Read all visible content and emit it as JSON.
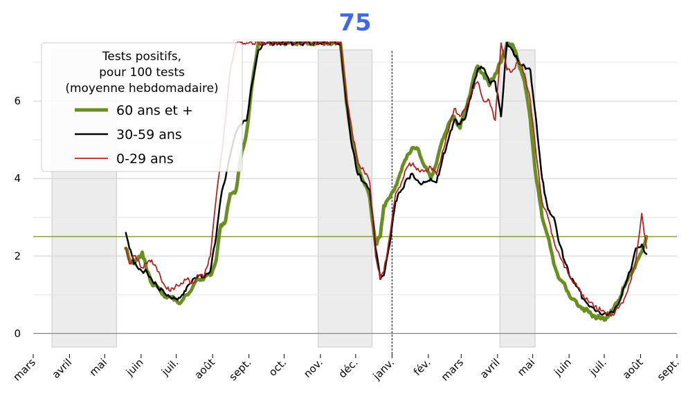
{
  "chart_data": {
    "type": "line",
    "title": "75",
    "xlabel": "",
    "ylabel": "",
    "x_axis_type": "date",
    "xlim": [
      "2020-03-01",
      "2021-09-01"
    ],
    "ylim": [
      -0.35,
      7.5
    ],
    "x_ticks": [
      {
        "date": "2020-03-01",
        "label": "mars"
      },
      {
        "date": "2020-04-01",
        "label": "avril"
      },
      {
        "date": "2020-05-01",
        "label": "mai"
      },
      {
        "date": "2020-06-01",
        "label": "juin"
      },
      {
        "date": "2020-07-01",
        "label": "juil."
      },
      {
        "date": "2020-08-01",
        "label": "août"
      },
      {
        "date": "2020-09-01",
        "label": "sept."
      },
      {
        "date": "2020-10-01",
        "label": "oct."
      },
      {
        "date": "2020-11-01",
        "label": "nov."
      },
      {
        "date": "2020-12-01",
        "label": "déc."
      },
      {
        "date": "2021-01-01",
        "label": "janv."
      },
      {
        "date": "2021-02-01",
        "label": "fév."
      },
      {
        "date": "2021-03-01",
        "label": "mars"
      },
      {
        "date": "2021-04-01",
        "label": "avril"
      },
      {
        "date": "2021-05-01",
        "label": "mai"
      },
      {
        "date": "2021-06-01",
        "label": "juin"
      },
      {
        "date": "2021-07-01",
        "label": "juil."
      },
      {
        "date": "2021-08-01",
        "label": "août"
      },
      {
        "date": "2021-09-01",
        "label": "sept."
      }
    ],
    "y_ticks": [
      0,
      2,
      4,
      6
    ],
    "minor_grid_y": [
      1,
      3,
      5,
      7
    ],
    "grid": true,
    "reference_line": {
      "y": 2.5,
      "color": "#6b8e23"
    },
    "vertical_marker": {
      "date": "2021-01-01",
      "style": "dashed",
      "color": "#000000"
    },
    "shaded_periods": [
      {
        "start": "2020-03-17",
        "end": "2020-05-11"
      },
      {
        "start": "2020-10-30",
        "end": "2020-12-15"
      },
      {
        "start": "2021-04-03",
        "end": "2021-05-03"
      }
    ],
    "legend": {
      "placement": "top-left",
      "title_lines": [
        "Tests positifs,",
        "pour 100 tests",
        "(moyenne hebdomadaire)"
      ]
    },
    "series": [
      {
        "name": "60 ans et +",
        "color": "#6b8e23",
        "width": 5,
        "x": [
          "2020-05-19",
          "2020-05-22",
          "2020-05-26",
          "2020-05-29",
          "2020-06-02",
          "2020-06-06",
          "2020-06-10",
          "2020-06-15",
          "2020-06-20",
          "2020-06-25",
          "2020-06-30",
          "2020-07-05",
          "2020-07-10",
          "2020-07-15",
          "2020-07-20",
          "2020-07-25",
          "2020-07-30",
          "2020-08-04",
          "2020-08-08",
          "2020-08-12",
          "2020-08-16",
          "2020-08-21",
          "2020-08-25",
          "2020-08-30",
          "2020-09-04",
          "2020-09-09",
          "2020-09-14",
          "2020-09-19",
          "2020-09-24",
          "2020-09-29",
          "2020-10-03",
          "2020-10-07",
          "2020-11-18",
          "2020-11-23",
          "2020-11-28",
          "2020-12-03",
          "2020-12-08",
          "2020-12-13",
          "2020-12-18",
          "2020-12-22",
          "2020-12-25",
          "2020-12-30",
          "2021-01-04",
          "2021-01-09",
          "2021-01-14",
          "2021-01-19",
          "2021-01-24",
          "2021-01-29",
          "2021-02-03",
          "2021-02-08",
          "2021-02-13",
          "2021-02-18",
          "2021-02-23",
          "2021-02-28",
          "2021-03-05",
          "2021-03-10",
          "2021-03-15",
          "2021-03-20",
          "2021-03-25",
          "2021-03-30",
          "2021-04-04",
          "2021-04-09",
          "2021-04-14",
          "2021-04-19",
          "2021-04-24",
          "2021-04-29",
          "2021-05-04",
          "2021-05-09",
          "2021-05-14",
          "2021-05-19",
          "2021-05-24",
          "2021-05-29",
          "2021-06-03",
          "2021-06-08",
          "2021-06-13",
          "2021-06-18",
          "2021-06-23",
          "2021-06-28",
          "2021-07-03",
          "2021-07-08",
          "2021-07-13",
          "2021-07-18",
          "2021-07-23",
          "2021-07-28",
          "2021-08-02",
          "2021-08-06"
        ],
        "y": [
          2.2,
          1.9,
          1.8,
          1.9,
          2.1,
          1.6,
          1.3,
          1.2,
          1.0,
          0.95,
          0.9,
          0.8,
          1.0,
          1.2,
          1.4,
          1.45,
          1.5,
          1.9,
          2.8,
          2.9,
          3.6,
          3.7,
          4.5,
          5.2,
          6.5,
          7.5,
          7.6,
          7.55,
          7.5,
          7.5,
          7.5,
          7.5,
          7.5,
          6.0,
          5.0,
          4.3,
          3.9,
          3.5,
          2.3,
          2.5,
          3.3,
          3.5,
          3.8,
          4.2,
          4.6,
          4.8,
          4.7,
          4.3,
          4.0,
          4.4,
          5.0,
          5.4,
          5.6,
          5.3,
          5.8,
          6.4,
          6.9,
          6.7,
          6.4,
          6.7,
          7.0,
          7.5,
          7.45,
          7.0,
          6.5,
          5.5,
          4.0,
          3.0,
          2.5,
          1.8,
          1.4,
          1.2,
          0.9,
          0.75,
          0.65,
          0.55,
          0.45,
          0.38,
          0.42,
          0.6,
          0.85,
          1.2,
          1.5,
          1.8,
          2.1,
          2.5
        ]
      },
      {
        "name": "30-59 ans",
        "color": "#000000",
        "width": 2.5,
        "x": [
          "2020-05-19",
          "2020-05-22",
          "2020-05-26",
          "2020-05-29",
          "2020-06-02",
          "2020-06-06",
          "2020-06-10",
          "2020-06-15",
          "2020-06-20",
          "2020-06-25",
          "2020-06-30",
          "2020-07-05",
          "2020-07-10",
          "2020-07-15",
          "2020-07-20",
          "2020-07-25",
          "2020-07-30",
          "2020-08-04",
          "2020-08-08",
          "2020-08-12",
          "2020-08-16",
          "2020-08-21",
          "2020-08-25",
          "2020-08-30",
          "2020-09-04",
          "2020-09-09",
          "2020-09-14",
          "2020-09-19",
          "2020-09-24",
          "2020-09-29",
          "2020-11-18",
          "2020-11-23",
          "2020-11-28",
          "2020-12-03",
          "2020-12-08",
          "2020-12-13",
          "2020-12-18",
          "2020-12-22",
          "2020-12-25",
          "2020-12-30",
          "2021-01-04",
          "2021-01-09",
          "2021-01-14",
          "2021-01-19",
          "2021-01-24",
          "2021-01-29",
          "2021-02-03",
          "2021-02-08",
          "2021-02-13",
          "2021-02-18",
          "2021-02-23",
          "2021-02-28",
          "2021-03-05",
          "2021-03-10",
          "2021-03-15",
          "2021-03-20",
          "2021-03-25",
          "2021-03-30",
          "2021-04-04",
          "2021-04-09",
          "2021-04-14",
          "2021-04-19",
          "2021-04-24",
          "2021-04-29",
          "2021-05-04",
          "2021-05-09",
          "2021-05-14",
          "2021-05-19",
          "2021-05-24",
          "2021-05-29",
          "2021-06-03",
          "2021-06-08",
          "2021-06-13",
          "2021-06-18",
          "2021-06-23",
          "2021-06-28",
          "2021-07-03",
          "2021-07-08",
          "2021-07-13",
          "2021-07-18",
          "2021-07-23",
          "2021-07-28",
          "2021-08-02",
          "2021-08-06"
        ],
        "y": [
          2.6,
          2.2,
          1.8,
          1.7,
          1.6,
          1.6,
          1.4,
          1.2,
          1.1,
          0.95,
          0.9,
          0.95,
          1.2,
          1.4,
          1.5,
          1.45,
          1.6,
          2.5,
          3.5,
          4.0,
          4.6,
          5.2,
          5.4,
          5.5,
          6.5,
          7.3,
          7.5,
          7.5,
          7.5,
          7.5,
          7.5,
          6.0,
          4.8,
          4.1,
          3.9,
          3.7,
          2.2,
          1.4,
          1.5,
          2.3,
          3.4,
          3.7,
          4.0,
          4.1,
          3.9,
          3.9,
          4.0,
          3.9,
          4.5,
          5.0,
          5.5,
          5.4,
          5.6,
          6.2,
          6.8,
          6.85,
          6.5,
          6.5,
          5.6,
          7.5,
          7.3,
          7.0,
          6.9,
          6.8,
          5.5,
          4.0,
          3.2,
          3.0,
          2.3,
          1.8,
          1.4,
          1.2,
          0.9,
          0.7,
          0.6,
          0.5,
          0.48,
          0.55,
          0.75,
          1.2,
          1.6,
          2.2,
          2.3,
          2.05
        ]
      },
      {
        "name": "0-29 ans",
        "color": "#b22222",
        "width": 1.8,
        "x": [
          "2020-05-19",
          "2020-05-22",
          "2020-05-26",
          "2020-05-29",
          "2020-06-02",
          "2020-06-06",
          "2020-06-10",
          "2020-06-15",
          "2020-06-20",
          "2020-06-25",
          "2020-06-30",
          "2020-07-05",
          "2020-07-10",
          "2020-07-15",
          "2020-07-20",
          "2020-07-25",
          "2020-07-30",
          "2020-08-04",
          "2020-08-08",
          "2020-08-12",
          "2020-08-16",
          "2020-08-21",
          "2020-08-25",
          "2020-08-30",
          "2020-11-18",
          "2020-11-23",
          "2020-11-28",
          "2020-12-03",
          "2020-12-08",
          "2020-12-13",
          "2020-12-18",
          "2020-12-22",
          "2020-12-25",
          "2020-12-30",
          "2021-01-04",
          "2021-01-09",
          "2021-01-14",
          "2021-01-19",
          "2021-01-24",
          "2021-01-29",
          "2021-02-03",
          "2021-02-08",
          "2021-02-13",
          "2021-02-18",
          "2021-02-23",
          "2021-02-28",
          "2021-03-05",
          "2021-03-10",
          "2021-03-15",
          "2021-03-20",
          "2021-03-25",
          "2021-03-30",
          "2021-04-04",
          "2021-04-09",
          "2021-04-14",
          "2021-04-19",
          "2021-04-24",
          "2021-04-29",
          "2021-05-04",
          "2021-05-09",
          "2021-05-14",
          "2021-05-19",
          "2021-05-24",
          "2021-05-29",
          "2021-06-03",
          "2021-06-08",
          "2021-06-13",
          "2021-06-18",
          "2021-06-23",
          "2021-06-28",
          "2021-07-03",
          "2021-07-08",
          "2021-07-13",
          "2021-07-18",
          "2021-07-23",
          "2021-07-28",
          "2021-08-02",
          "2021-08-06"
        ],
        "y": [
          2.2,
          1.8,
          2.0,
          1.9,
          1.7,
          1.8,
          1.9,
          1.6,
          1.3,
          1.1,
          1.2,
          1.3,
          1.4,
          1.3,
          1.5,
          1.5,
          2.0,
          3.5,
          4.5,
          5.5,
          6.8,
          7.5,
          7.5,
          7.5,
          7.5,
          6.2,
          5.2,
          4.4,
          4.2,
          3.9,
          2.0,
          1.4,
          1.6,
          2.5,
          3.6,
          3.9,
          4.3,
          4.4,
          4.2,
          4.2,
          4.3,
          4.1,
          4.7,
          5.2,
          5.8,
          5.6,
          5.8,
          6.3,
          6.5,
          6.0,
          6.0,
          5.5,
          7.5,
          6.8,
          6.8,
          7.0,
          6.7,
          6.0,
          4.6,
          3.4,
          3.0,
          2.4,
          2.0,
          1.7,
          1.4,
          1.2,
          1.0,
          0.8,
          0.7,
          0.6,
          0.5,
          0.5,
          0.65,
          0.9,
          1.3,
          1.9,
          3.1,
          2.2
        ]
      }
    ]
  }
}
